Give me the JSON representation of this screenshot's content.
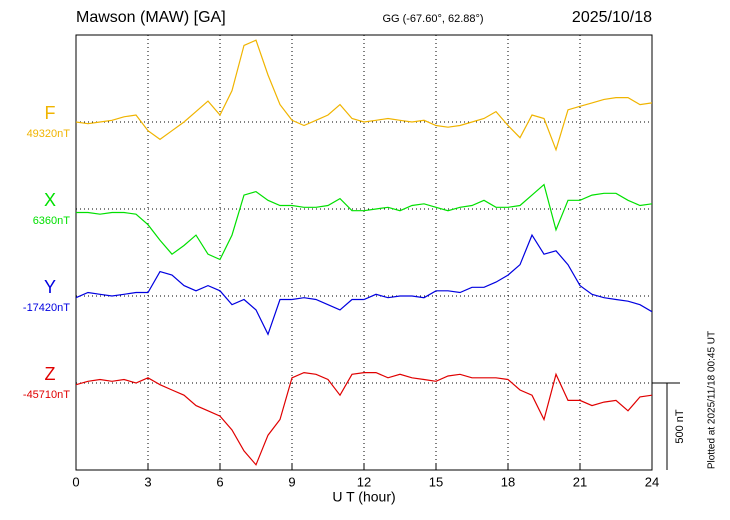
{
  "chart_data": {
    "type": "line",
    "title": "Mawson (MAW)  [GA]",
    "subtitle": "GG (-67.60°,  62.88°)",
    "date": "2025/10/18",
    "x_label": "U T (hour)",
    "footnote": "Plotted at 2025/11/18 00:45 UT",
    "scale_bar": {
      "value": 500,
      "label": "500 nT"
    },
    "xlim": [
      0,
      24
    ],
    "xticks": [
      0,
      3,
      6,
      9,
      12,
      15,
      18,
      21,
      24
    ],
    "ylim": [
      -500,
      2000
    ],
    "grid": true,
    "x": [
      0,
      0.5,
      1,
      1.5,
      2,
      2.5,
      3,
      3.5,
      4,
      4.5,
      5,
      5.5,
      6,
      6.5,
      7,
      7.5,
      8,
      8.5,
      9,
      9.5,
      10,
      10.5,
      11,
      11.5,
      12,
      12.5,
      13,
      13.5,
      14,
      14.5,
      15,
      15.5,
      16,
      16.5,
      17,
      17.5,
      18,
      18.5,
      19,
      19.5,
      20,
      20.5,
      21,
      21.5,
      22,
      22.5,
      23,
      23.5,
      24
    ],
    "series": [
      {
        "name": "F",
        "color": "#f0b400",
        "baseline_label": "49320nT",
        "offset": 1500,
        "values": [
          0,
          -10,
          0,
          10,
          30,
          40,
          -50,
          -100,
          -50,
          0,
          60,
          120,
          40,
          180,
          440,
          470,
          270,
          100,
          10,
          -20,
          10,
          40,
          100,
          20,
          0,
          10,
          20,
          10,
          0,
          10,
          -20,
          -30,
          -20,
          0,
          20,
          60,
          -20,
          -90,
          40,
          20,
          -160,
          70,
          90,
          110,
          130,
          140,
          140,
          100,
          110
        ]
      },
      {
        "name": "X",
        "color": "#00e000",
        "baseline_label": "6360nT",
        "offset": 1000,
        "values": [
          -20,
          -20,
          -30,
          -20,
          -20,
          -30,
          -90,
          -180,
          -260,
          -210,
          -150,
          -260,
          -290,
          -150,
          80,
          100,
          50,
          20,
          20,
          10,
          10,
          20,
          60,
          -10,
          -10,
          0,
          10,
          -10,
          20,
          30,
          10,
          -10,
          10,
          20,
          50,
          10,
          10,
          20,
          80,
          140,
          -120,
          50,
          50,
          80,
          90,
          90,
          50,
          20,
          30
        ]
      },
      {
        "name": "Y",
        "color": "#0000e0",
        "baseline_label": "-17420nT",
        "offset": 500,
        "values": [
          -10,
          20,
          10,
          0,
          10,
          20,
          20,
          140,
          120,
          60,
          30,
          60,
          30,
          -50,
          -20,
          -80,
          -220,
          -20,
          -20,
          -10,
          -20,
          -50,
          -80,
          -20,
          -20,
          10,
          -10,
          0,
          0,
          -10,
          30,
          30,
          20,
          50,
          50,
          80,
          120,
          180,
          350,
          240,
          260,
          180,
          60,
          10,
          -10,
          -20,
          -30,
          -50,
          -90
        ]
      },
      {
        "name": "Z",
        "color": "#e00000",
        "baseline_label": "-45710nT",
        "offset": 0,
        "values": [
          -10,
          10,
          20,
          10,
          20,
          0,
          30,
          -10,
          -40,
          -70,
          -130,
          -160,
          -190,
          -270,
          -390,
          -470,
          -300,
          -210,
          30,
          60,
          50,
          20,
          -70,
          50,
          60,
          60,
          30,
          50,
          30,
          20,
          10,
          40,
          50,
          30,
          30,
          30,
          20,
          -40,
          -70,
          -210,
          50,
          -100,
          -100,
          -130,
          -110,
          -100,
          -160,
          -80,
          -70
        ]
      }
    ]
  }
}
